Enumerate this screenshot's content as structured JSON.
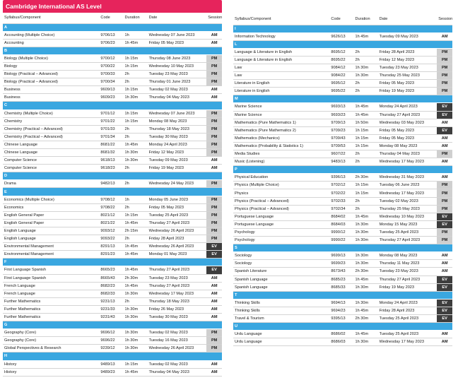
{
  "title": "Cambridge International AS Level",
  "headers": {
    "syllabus": "Syllabus/Component",
    "code": "Code",
    "duration": "Duration",
    "date": "Date",
    "session": "Session"
  },
  "colors": {
    "brand": "#e6245c",
    "letter_bar": "#3aa7e0",
    "pm": "#cfcfcf",
    "ev": "#3d3d3d"
  },
  "left": [
    {
      "letter": "A"
    },
    [
      "Accounting (Multiple Choice)",
      "9706/13",
      "1h",
      "Wednesday 07 June 2023",
      "AM"
    ],
    [
      "Accounting",
      "9706/23",
      "1h 45m",
      "Friday 05 May 2023",
      "AM"
    ],
    {
      "letter": "B"
    },
    [
      "Biology (Multiple Choice)",
      "9700/12",
      "1h 15m",
      "Thursday 08 June 2023",
      "PM"
    ],
    [
      "Biology",
      "9700/22",
      "1h 15m",
      "Wednesday 10 May 2023",
      "PM"
    ],
    [
      "Biology (Practical – Advanced)",
      "9700/33",
      "2h",
      "Tuesday 23 May 2023",
      "PM"
    ],
    [
      "Biology (Practical – Advanced)",
      "9700/34",
      "2h",
      "Thursday 01 June 2023",
      "PM"
    ],
    [
      "Business",
      "9609/13",
      "1h 15m",
      "Tuesday 02 May 2023",
      "AM"
    ],
    [
      "Business",
      "9609/23",
      "1h 30m",
      "Thursday 04 May 2023",
      "AM"
    ],
    {
      "letter": "C"
    },
    [
      "Chemistry (Multiple Choice)",
      "9701/12",
      "1h 15m",
      "Wednesday 07 June 2023",
      "PM"
    ],
    [
      "Chemistry",
      "9701/22",
      "1h 15m",
      "Monday 08 May 2023",
      "PM"
    ],
    [
      "Chemistry (Practical – Advanced)",
      "9701/33",
      "2h",
      "Thursday 18 May 2023",
      "PM"
    ],
    [
      "Chemistry (Practical – Advanced)",
      "9701/34",
      "2h",
      "Tuesday 30 May 2023",
      "PM"
    ],
    [
      "Chinese Language",
      "8681/22",
      "1h 45m",
      "Monday 24 April 2023",
      "PM"
    ],
    [
      "Chinese Language",
      "8681/32",
      "1h 30m",
      "Friday 12 May 2023",
      "PM"
    ],
    [
      "Computer Science",
      "9618/13",
      "1h 30m",
      "Tuesday 09 May 2023",
      "AM"
    ],
    [
      "Computer Science",
      "9618/23",
      "2h",
      "Friday 19 May 2023",
      "AM"
    ],
    {
      "letter": "D"
    },
    [
      "Drama",
      "9482/13",
      "2h",
      "Wednesday 24 May 2023",
      "PM"
    ],
    {
      "letter": "E"
    },
    [
      "Economics (Multiple Choice)",
      "9708/12",
      "1h",
      "Monday 05 June 2023",
      "PM"
    ],
    [
      "Economics",
      "9708/22",
      "2h",
      "Friday 05 May 2023",
      "PM"
    ],
    [
      "English General Paper",
      "8021/12",
      "1h 15m",
      "Tuesday 25 April 2023",
      "PM"
    ],
    [
      "English General Paper",
      "8021/22",
      "1h 45m",
      "Thursday 27 April 2023",
      "PM"
    ],
    [
      "English Language",
      "9093/12",
      "2h 15m",
      "Wednesday 26 April 2023",
      "PM"
    ],
    [
      "English Language",
      "9093/22",
      "2h",
      "Friday 28 April 2023",
      "PM"
    ],
    [
      "Environmental Management",
      "8291/13",
      "1h 45m",
      "Wednesday 26 April 2023",
      "EV"
    ],
    [
      "Environmental Management",
      "8291/23",
      "1h 45m",
      "Monday 01 May 2023",
      "EV"
    ],
    {
      "letter": "F"
    },
    [
      "First Language Spanish",
      "8665/23",
      "1h 45m",
      "Thursday 27 April 2023",
      "EV"
    ],
    [
      "First Language Spanish",
      "8665/43",
      "2h 30m",
      "Tuesday 23 May 2023",
      "AM"
    ],
    [
      "French Language",
      "8682/23",
      "1h 45m",
      "Thursday 27 April 2023",
      "AM"
    ],
    [
      "French Language",
      "8682/33",
      "1h 30m",
      "Wednesday 17 May 2023",
      "AM"
    ],
    [
      "Further Mathematics",
      "9231/13",
      "2h",
      "Thursday 18 May 2023",
      "AM"
    ],
    [
      "Further Mathematics",
      "9231/33",
      "1h 30m",
      "Friday 26 May 2023",
      "AM"
    ],
    [
      "Further Mathematics",
      "9231/43",
      "1h 30m",
      "Tuesday 30 May 2023",
      "AM"
    ],
    {
      "letter": "G"
    },
    [
      "Geography (Core)",
      "9696/12",
      "1h 30m",
      "Tuesday 02 May 2023",
      "PM"
    ],
    [
      "Geography (Core)",
      "9696/22",
      "1h 30m",
      "Tuesday 16 May 2023",
      "PM"
    ],
    [
      "Global Perspectives & Research",
      "9239/12",
      "1h 30m",
      "Wednesday 26 April 2023",
      "PM"
    ],
    {
      "letter": "H"
    },
    [
      "History",
      "9489/13",
      "1h 15m",
      "Tuesday 02 May 2023",
      "AM"
    ],
    [
      "History",
      "9489/23",
      "1h 45m",
      "Thursday 04 May 2023",
      "AM"
    ]
  ],
  "right": [
    {
      "letter": "I"
    },
    [
      "Information Technology",
      "9626/13",
      "1h 45m",
      "Tuesday 09 May 2023",
      "AM"
    ],
    {
      "letter": "L"
    },
    [
      "Language & Literature in English",
      "8695/12",
      "2h",
      "Friday 28 April 2023",
      "PM"
    ],
    [
      "Language & Literature in English",
      "8695/22",
      "2h",
      "Friday 12 May 2023",
      "PM"
    ],
    [
      "Law",
      "9084/12",
      "1h 30m",
      "Tuesday 23 May 2023",
      "PM"
    ],
    [
      "Law",
      "9084/22",
      "1h 30m",
      "Thursday 25 May 2023",
      "PM"
    ],
    [
      "Literature in English",
      "9695/12",
      "2h",
      "Friday 05 May 2023",
      "PM"
    ],
    [
      "Literature in English",
      "9695/22",
      "2h",
      "Friday 19 May 2023",
      "PM"
    ],
    {
      "letter": "M"
    },
    [
      "Marine Science",
      "9693/13",
      "1h 45m",
      "Monday 24 April 2023",
      "EV"
    ],
    [
      "Marine Science",
      "9693/23",
      "1h 45m",
      "Thursday 27 April 2023",
      "EV"
    ],
    [
      "Mathematics (Pure Mathematics 1)",
      "9709/13",
      "1h 50m",
      "Wednesday 03 May 2023",
      "AM"
    ],
    [
      "Mathematics (Pure Mathematics 2)",
      "9709/23",
      "1h 15m",
      "Friday 05 May 2023",
      "EV"
    ],
    [
      "Mathematics (Mechanics)",
      "9709/43",
      "1h 15m",
      "Friday 05 May 2023",
      "AM"
    ],
    [
      "Mathematics (Probability & Statistics 1)",
      "9709/53",
      "1h 15m",
      "Monday 08 May 2023",
      "AM"
    ],
    [
      "Media Studies",
      "9607/22",
      "2h",
      "Thursday 04 May 2023",
      "PM"
    ],
    [
      "Music (Listening)",
      "9483/13",
      "2h",
      "Wednesday 17 May 2023",
      "AM"
    ],
    {
      "letter": "P"
    },
    [
      "Physical Education",
      "9396/13",
      "2h 30m",
      "Wednesday 31 May 2023",
      "AM"
    ],
    [
      "Physics (Multiple Choice)",
      "9702/12",
      "1h 15m",
      "Tuesday 06 June 2023",
      "PM"
    ],
    [
      "Physics",
      "9702/22",
      "1h 15m",
      "Wednesday 17 May 2023",
      "PM"
    ],
    [
      "Physics (Practical – Advanced)",
      "9702/33",
      "2h",
      "Tuesday 02 May 2023",
      "PM"
    ],
    [
      "Physics (Practical – Advanced)",
      "9702/34",
      "2h",
      "Thursday 25 May 2023",
      "PM"
    ],
    [
      "Portuguese Language",
      "8684/02",
      "1h 45m",
      "Wednesday 10 May 2023",
      "EV"
    ],
    [
      "Portuguese Language",
      "8684/03",
      "1h 30m",
      "Monday 15 May 2023",
      "EV"
    ],
    [
      "Psychology",
      "9990/12",
      "1h 30m",
      "Tuesday 25 April 2023",
      "PM"
    ],
    [
      "Psychology",
      "9990/22",
      "1h 30m",
      "Thursday 27 April 2023",
      "PM"
    ],
    {
      "letter": "S"
    },
    [
      "Sociology",
      "9699/13",
      "1h 30m",
      "Monday 08 May 2023",
      "AM"
    ],
    [
      "Sociology",
      "9699/23",
      "1h 30m",
      "Thursday 11 May 2023",
      "AM"
    ],
    [
      "Spanish Literature",
      "8673/43",
      "2h 30m",
      "Tuesday 23 May 2023",
      "AM"
    ],
    [
      "Spanish Language",
      "8685/23",
      "1h 45m",
      "Thursday 27 April 2023",
      "EV"
    ],
    [
      "Spanish Language",
      "8685/33",
      "1h 30m",
      "Friday 19 May 2023",
      "EV"
    ],
    {
      "letter": "T"
    },
    [
      "Thinking Skills",
      "9694/13",
      "1h 30m",
      "Monday 24 April 2023",
      "EV"
    ],
    [
      "Thinking Skills",
      "9694/23",
      "1h 45m",
      "Friday 28 April 2023",
      "EV"
    ],
    [
      "Travel & Tourism",
      "9395/13",
      "2h 30m",
      "Tuesday 25 April 2023",
      "EV"
    ],
    {
      "letter": "U"
    },
    [
      "Urdu Language",
      "8686/02",
      "1h 45m",
      "Tuesday 25 April 2023",
      "AM"
    ],
    [
      "Urdu Language",
      "8686/03",
      "1h 30m",
      "Wednesday 17 May 2023",
      "AM"
    ]
  ]
}
